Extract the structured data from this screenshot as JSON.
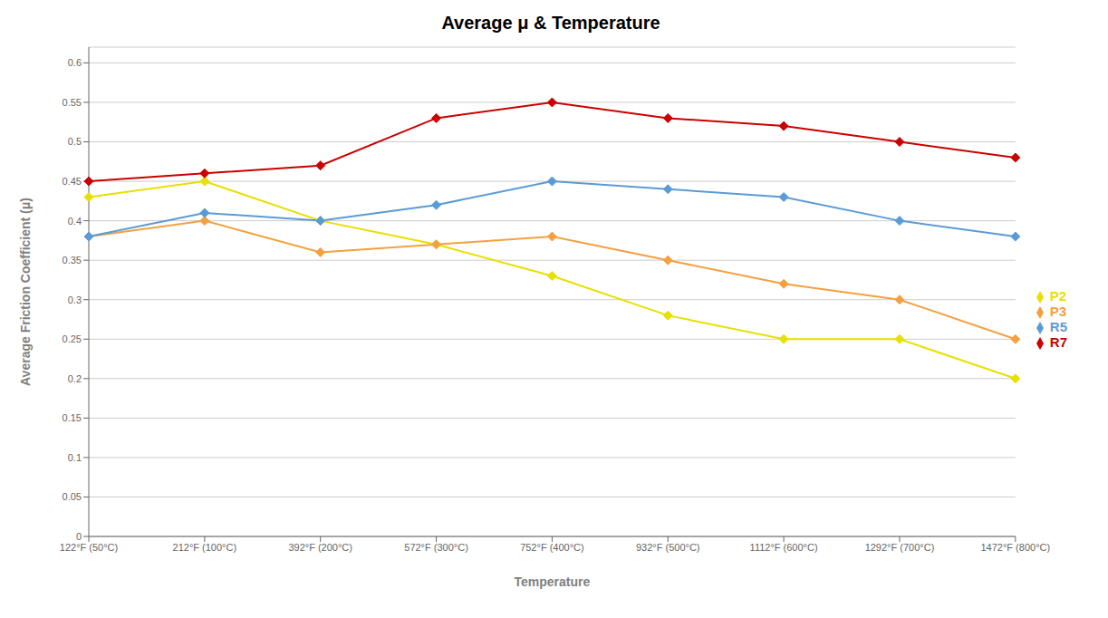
{
  "chart_data": {
    "type": "line",
    "title": "Average μ & Temperature",
    "x_label": "Temperature",
    "y_label": "Average Friction Coefficient (μ)",
    "categories": [
      "122°F (50°C)",
      "212°F (100°C)",
      "392°F (200°C)",
      "572°F (300°C)",
      "752°F (400°C)",
      "932°F (500°C)",
      "1112°F (600°C)",
      "1292°F (700°C)",
      "1472°F (800°C)"
    ],
    "series": [
      {
        "name": "P2",
        "color": "#e8e000",
        "marker": "diamond",
        "values": [
          0.43,
          0.45,
          0.4,
          0.37,
          0.33,
          0.28,
          0.25,
          0.25,
          0.2
        ]
      },
      {
        "name": "P3",
        "color": "#f4a040",
        "marker": "diamond",
        "values": [
          0.38,
          0.4,
          0.36,
          0.37,
          0.38,
          0.35,
          0.32,
          0.3,
          0.25
        ]
      },
      {
        "name": "R5",
        "color": "#5b9bd5",
        "marker": "diamond",
        "values": [
          0.38,
          0.41,
          0.4,
          0.42,
          0.45,
          0.44,
          0.43,
          0.4,
          0.38
        ]
      },
      {
        "name": "R7",
        "color": "#cc0000",
        "marker": "diamond",
        "values": [
          0.45,
          0.46,
          0.47,
          0.53,
          0.55,
          0.53,
          0.52,
          0.5,
          0.48
        ]
      }
    ],
    "ylim": [
      0,
      0.62
    ],
    "yticks": [
      0,
      0.05,
      0.1,
      0.15,
      0.2,
      0.25,
      0.3,
      0.35,
      0.4,
      0.45,
      0.5,
      0.55,
      0.6
    ],
    "grid": true,
    "legend": "right"
  }
}
